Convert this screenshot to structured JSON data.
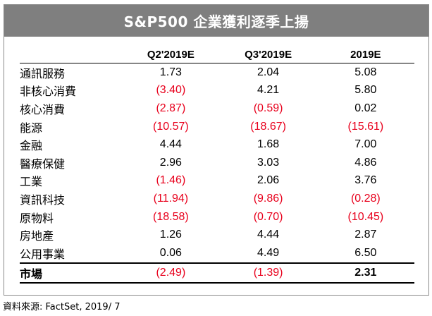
{
  "title": "S&P500 企業獲利逐季上揚",
  "columns": [
    "Q2'2019E",
    "Q3'2019E",
    "2019E"
  ],
  "rows": [
    {
      "category": "通訊服務",
      "values": [
        "1.73",
        "2.04",
        "5.08"
      ],
      "negative": [
        false,
        false,
        false
      ]
    },
    {
      "category": "非核心消費",
      "values": [
        "(3.40)",
        "4.21",
        "5.80"
      ],
      "negative": [
        true,
        false,
        false
      ]
    },
    {
      "category": "核心消費",
      "values": [
        "(2.87)",
        "(0.59)",
        "0.02"
      ],
      "negative": [
        true,
        true,
        false
      ]
    },
    {
      "category": "能源",
      "values": [
        "(10.57)",
        "(18.67)",
        "(15.61)"
      ],
      "negative": [
        true,
        true,
        true
      ]
    },
    {
      "category": "金融",
      "values": [
        "4.44",
        "1.68",
        "7.00"
      ],
      "negative": [
        false,
        false,
        false
      ]
    },
    {
      "category": "醫療保健",
      "values": [
        "2.96",
        "3.03",
        "4.86"
      ],
      "negative": [
        false,
        false,
        false
      ]
    },
    {
      "category": "工業",
      "values": [
        "(1.46)",
        "2.06",
        "3.76"
      ],
      "negative": [
        true,
        false,
        false
      ]
    },
    {
      "category": "資訊科技",
      "values": [
        "(11.94)",
        "(9.86)",
        "(0.28)"
      ],
      "negative": [
        true,
        true,
        true
      ]
    },
    {
      "category": "原物料",
      "values": [
        "(18.58)",
        "(0.70)",
        "(10.45)"
      ],
      "negative": [
        true,
        true,
        true
      ]
    },
    {
      "category": "房地產",
      "values": [
        "1.26",
        "4.44",
        "2.87"
      ],
      "negative": [
        false,
        false,
        false
      ]
    },
    {
      "category": "公用事業",
      "values": [
        "0.06",
        "4.49",
        "6.50"
      ],
      "negative": [
        false,
        false,
        false
      ]
    }
  ],
  "total": {
    "category": "市場",
    "values": [
      "(2.49)",
      "(1.39)",
      "2.31"
    ],
    "negative": [
      true,
      true,
      false
    ]
  },
  "source": "資料來源: FactSet, 2019/ 7",
  "colors": {
    "negative": "#e8001c",
    "title_bar": "#7f7f7f"
  }
}
